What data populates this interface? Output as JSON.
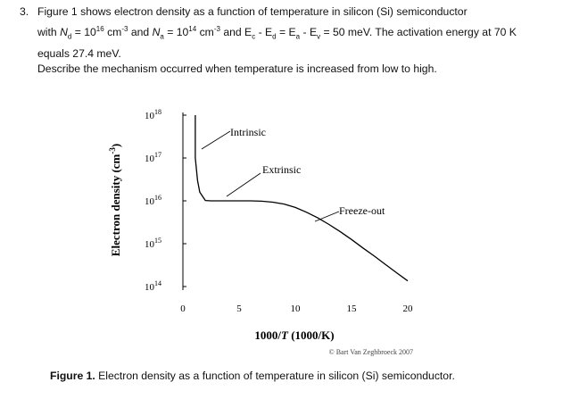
{
  "question": {
    "number": "3.",
    "line1": "Figure 1 shows electron density as a function of temperature in silicon (Si) semiconductor",
    "nd_sym": "N",
    "nd_sub": "d",
    "eq": " = 10",
    "nd_exp": "16",
    "unit": " cm",
    "unit_exp": "-3",
    "and": " and ",
    "na_sym": "N",
    "na_sub": "a",
    "na_exp": "14",
    "unit2_exp": "-3",
    "e_part": " and E",
    "ec_sub": "c",
    "minus_ed": " - E",
    "ed_sub": "d",
    "eq_ea": " = E",
    "ea_sub": "a",
    "minus_ev": " - E",
    "ev_sub": "v",
    "tail": " = 50 meV. The activation energy at 70 K",
    "with": "with ",
    "line3": "equals 27.4 meV."
  },
  "prompt": "Describe the mechanism occurred when temperature is increased from low to high.",
  "figure": {
    "ylabel": "Electron density (cm",
    "ylabel_exp": "-3",
    "ylabel_close": ")",
    "xlabel_prefix": "1000/",
    "xlabel_T": "T",
    "xlabel_suffix": " (1000/K)",
    "copyright": "© Bart Van Zeghbroeck 2007",
    "annotations": {
      "intrinsic": "Intrinsic",
      "extrinsic": "Extrinsic",
      "freeze_out": "Freeze-out"
    }
  },
  "chart_data": {
    "type": "line",
    "yscale": "log",
    "xlabel": "1000/T (1000/K)",
    "ylabel": "Electron density (cm-3)",
    "xlim": [
      0,
      20
    ],
    "ylim_exponent": [
      14,
      18
    ],
    "x_ticks": [
      "0",
      "5",
      "10",
      "15",
      "20"
    ],
    "y_ticks": [
      {
        "base": "10",
        "exp": "18"
      },
      {
        "base": "10",
        "exp": "17"
      },
      {
        "base": "10",
        "exp": "16"
      },
      {
        "base": "10",
        "exp": "15"
      },
      {
        "base": "10",
        "exp": "14"
      }
    ],
    "series": [
      {
        "x": [
          1.1,
          1.3,
          1.5,
          2.0,
          2.5,
          3.0,
          4.0,
          5.0,
          6.0,
          7.0,
          8.0,
          9.0,
          10.0,
          11.0,
          12.0,
          13.0,
          14.0,
          15.0,
          16.0,
          17.0,
          18.0,
          19.0,
          20.0
        ],
        "y": [
          1e+17,
          3e+16,
          1.6e+16,
          1.02e+16,
          1e+16,
          1e+16,
          1e+16,
          1e+16,
          1e+16,
          9800000000000000.0,
          9300000000000000.0,
          8400000000000000.0,
          7000000000000000.0,
          5400000000000000.0,
          4000000000000000.0,
          2800000000000000.0,
          1900000000000000.0,
          1250000000000000.0,
          800000000000000.0,
          520000000000000.0,
          330000000000000.0,
          210000000000000.0,
          135000000000000.0
        ]
      }
    ]
  }
}
